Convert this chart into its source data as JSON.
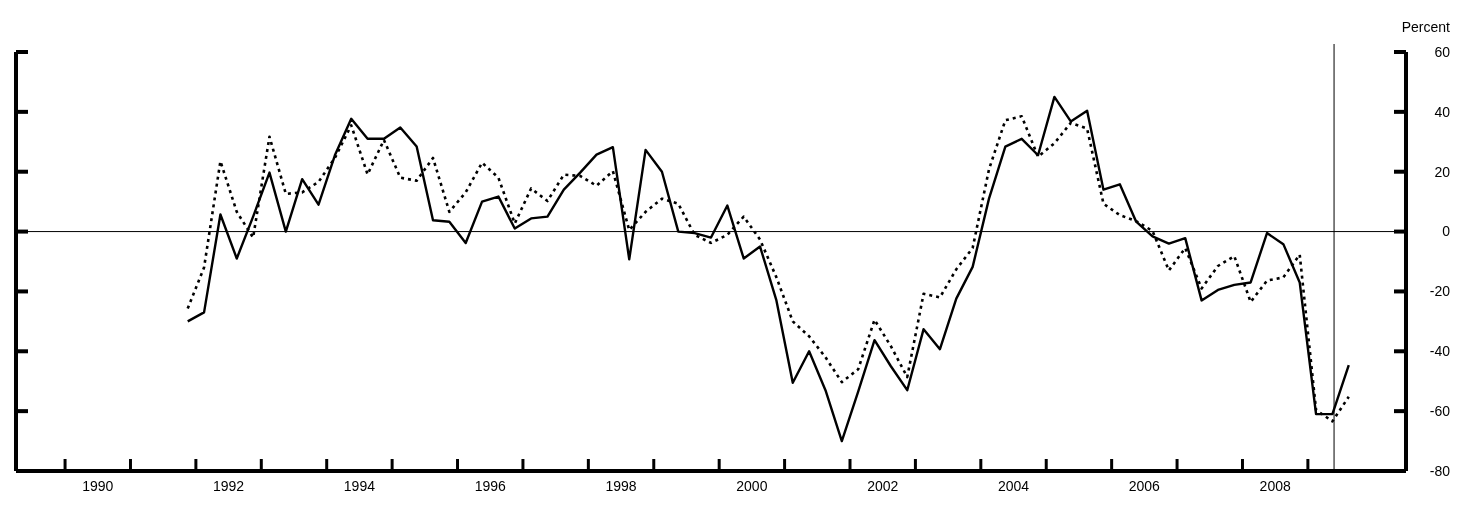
{
  "chart_data": {
    "type": "line",
    "ylabel": "Percent",
    "x": [
      1991.875,
      1992.125,
      1992.375,
      1992.625,
      1992.875,
      1993.125,
      1993.375,
      1993.625,
      1993.875,
      1994.125,
      1994.375,
      1994.625,
      1994.875,
      1995.125,
      1995.375,
      1995.625,
      1995.875,
      1996.125,
      1996.375,
      1996.625,
      1996.875,
      1997.125,
      1997.375,
      1997.625,
      1997.875,
      1998.125,
      1998.375,
      1998.625,
      1998.875,
      1999.125,
      1999.375,
      1999.625,
      1999.875,
      2000.125,
      2000.375,
      2000.625,
      2000.875,
      2001.125,
      2001.375,
      2001.625,
      2001.875,
      2002.125,
      2002.375,
      2002.625,
      2002.875,
      2003.125,
      2003.375,
      2003.625,
      2003.875,
      2004.125,
      2004.375,
      2004.625,
      2004.875,
      2005.125,
      2005.375,
      2005.625,
      2005.875,
      2006.125,
      2006.375,
      2006.625,
      2006.875,
      2007.125,
      2007.375,
      2007.625,
      2007.875,
      2008.125,
      2008.375,
      2008.625,
      2008.875,
      2009.125,
      2009.375,
      2009.625
    ],
    "series": [
      {
        "color": "#000000",
        "line_style": "solid",
        "values": [
          -30,
          -27,
          5.7,
          -9,
          5,
          19.7,
          0,
          17.5,
          9,
          25.5,
          37.7,
          31,
          31,
          34.8,
          28.4,
          3.8,
          3.3,
          -3.8,
          10,
          11.7,
          1,
          4.4,
          5,
          14,
          19.7,
          25.7,
          28.2,
          -9.3,
          27.3,
          20,
          0,
          -0.5,
          -2,
          8.7,
          -9,
          -5,
          -23,
          -50.5,
          -40,
          -53,
          -70,
          -53.5,
          -36.3,
          -45,
          -53,
          -32.6,
          -39.3,
          -22.4,
          -11.8,
          11,
          28.4,
          31,
          25.5,
          45,
          36.8,
          40.4,
          14,
          15.8,
          3.3,
          -1.6,
          -4,
          -2.2,
          -23,
          -19.5,
          -17.8,
          -17,
          -0.5,
          -4.2,
          -17,
          -61,
          -61,
          -44.6
        ]
      },
      {
        "color": "#000000",
        "line_style": "dotted",
        "values": [
          -25.7,
          -12,
          23.5,
          6.6,
          -2,
          31.7,
          12.6,
          13.1,
          16.6,
          24.6,
          35.5,
          19.1,
          30.6,
          18,
          17,
          24.6,
          6.6,
          13.1,
          23,
          18,
          2.7,
          14.4,
          10.2,
          19,
          18.6,
          15.3,
          20.2,
          0.5,
          6.6,
          11,
          9.3,
          -1.1,
          -3.8,
          -1.1,
          5,
          -2.7,
          -15.3,
          -30,
          -35,
          -42,
          -50.3,
          -46,
          -29.5,
          -38.3,
          -48.6,
          -20.8,
          -22,
          -12.6,
          -5.5,
          20.8,
          37.2,
          38.5,
          25,
          29.5,
          36.3,
          34.4,
          9.3,
          5.5,
          3.5,
          0.2,
          -13,
          -5.5,
          -19,
          -11.5,
          -8.2,
          -23.5,
          -16.4,
          -15.3,
          -7.7,
          -59.6,
          -63.4,
          -55.2
        ]
      }
    ],
    "xlim": [
      1989.25,
      2010.5
    ],
    "xticks": [
      {
        "value": 1990,
        "label": null
      },
      {
        "value": 1990.5,
        "label": "1990"
      },
      {
        "value": 1991,
        "label": null
      },
      {
        "value": 1992,
        "label": null
      },
      {
        "value": 1992.5,
        "label": "1992"
      },
      {
        "value": 1993,
        "label": null
      },
      {
        "value": 1994,
        "label": null
      },
      {
        "value": 1994.5,
        "label": "1994"
      },
      {
        "value": 1995,
        "label": null
      },
      {
        "value": 1996,
        "label": null
      },
      {
        "value": 1996.5,
        "label": "1996"
      },
      {
        "value": 1997,
        "label": null
      },
      {
        "value": 1998,
        "label": null
      },
      {
        "value": 1998.5,
        "label": "1998"
      },
      {
        "value": 1999,
        "label": null
      },
      {
        "value": 2000,
        "label": null
      },
      {
        "value": 2000.5,
        "label": "2000"
      },
      {
        "value": 2001,
        "label": null
      },
      {
        "value": 2002,
        "label": null
      },
      {
        "value": 2002.5,
        "label": "2002"
      },
      {
        "value": 2003,
        "label": null
      },
      {
        "value": 2004,
        "label": null
      },
      {
        "value": 2004.5,
        "label": "2004"
      },
      {
        "value": 2005,
        "label": null
      },
      {
        "value": 2006,
        "label": null
      },
      {
        "value": 2006.5,
        "label": "2006"
      },
      {
        "value": 2007,
        "label": null
      },
      {
        "value": 2008,
        "label": null
      },
      {
        "value": 2008.5,
        "label": "2008"
      },
      {
        "value": 2009,
        "label": null
      }
    ],
    "ylim": [
      -80,
      60
    ],
    "yticks": [
      -80,
      -60,
      -40,
      -20,
      0,
      20,
      40,
      60
    ],
    "ref_lines": [
      {
        "axis": "y",
        "value": 0,
        "label": null
      },
      {
        "axis": "x",
        "value": 2009.4,
        "label": null
      }
    ],
    "grid": false
  }
}
